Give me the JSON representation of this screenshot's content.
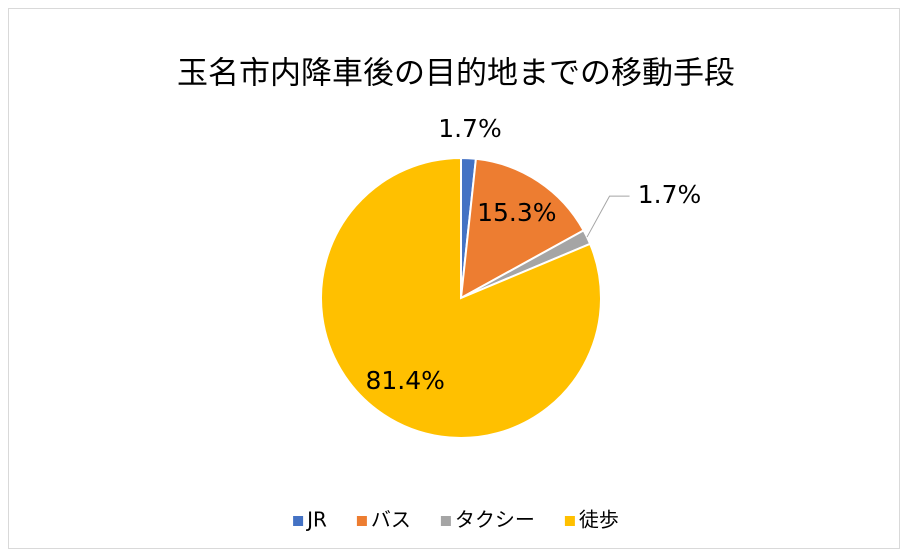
{
  "chart_data": {
    "type": "pie",
    "title": "玉名市内降車後の目的地までの移動手段",
    "categories": [
      "JR",
      "バス",
      "タクシー",
      "徒歩"
    ],
    "values": [
      1.7,
      15.3,
      1.7,
      81.4
    ],
    "value_labels": [
      "1.7%",
      "15.3%",
      "1.7%",
      "81.4%"
    ],
    "colors": [
      "#4472c4",
      "#ed7d31",
      "#a5a5a5",
      "#ffc000"
    ],
    "legend": "bottom"
  }
}
